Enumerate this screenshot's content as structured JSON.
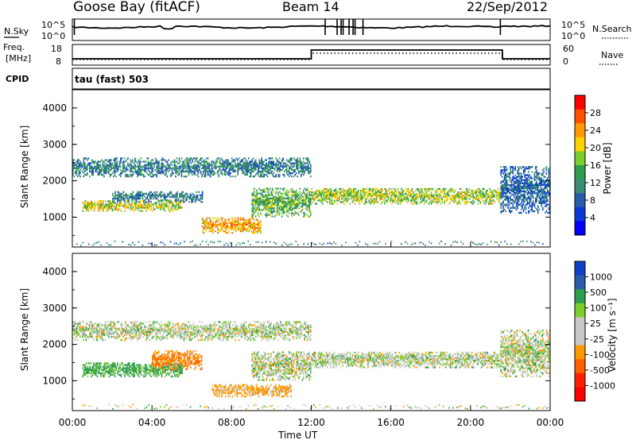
{
  "header": {
    "title": "Goose Bay (fitACF)",
    "beam": "Beam 14",
    "date": "22/Sep/2012"
  },
  "summary_panels": {
    "nsky_label": "N.Sky",
    "nsky_ticks": [
      "10^5",
      "10^0"
    ],
    "nsearch_label": "N.Search",
    "nsearch_ticks": [
      "10^5",
      "10^0"
    ],
    "freq_label": "Freq.",
    "freq_unit": "[MHz]",
    "freq_ticks": [
      "18",
      "8"
    ],
    "nave_label": "Nave",
    "nave_ticks": [
      "60",
      "0"
    ],
    "cpid_label": "CPID",
    "cpid_text": "tau (fast) 503"
  },
  "power_panel": {
    "ylabel": "Slant Range [km]",
    "yticks": [
      "4000",
      "3000",
      "2000",
      "1000"
    ],
    "colorbar_label": "Power [dB]",
    "colorbar_ticks": [
      "28",
      "24",
      "20",
      "16",
      "12",
      "8",
      "4"
    ],
    "colorbar_colors": [
      "#ff0000",
      "#ff5000",
      "#ff9a00",
      "#ffd200",
      "#7ccd2e",
      "#2f9d4e",
      "#3d8c7a",
      "#2a5cae",
      "#0a3ad6",
      "#0000ff"
    ]
  },
  "velocity_panel": {
    "ylabel": "Slant Range [km]",
    "yticks": [
      "4000",
      "3000",
      "2000",
      "1000"
    ],
    "colorbar_label": "Velocity [m s⁻¹]",
    "colorbar_ticks": [
      "1000",
      "500",
      "100",
      "25",
      "-25",
      "-100",
      "-500",
      "-1000"
    ],
    "colorbar_colors": [
      "#1040c8",
      "#2a5cae",
      "#2f9d4e",
      "#7ccd2e",
      "#c8c8c8",
      "#c8c8c8",
      "#ff9a00",
      "#ff6000",
      "#ff2000",
      "#ff0000"
    ]
  },
  "xaxis": {
    "label": "Time UT",
    "ticks": [
      "00:00",
      "04:00",
      "08:00",
      "12:00",
      "16:00",
      "20:00",
      "00:00"
    ]
  },
  "chart_data": [
    {
      "type": "heatmap",
      "name": "power",
      "xlabel": "Time UT",
      "ylabel": "Slant Range [km]",
      "zlabel": "Power [dB]",
      "xlim": [
        0,
        24
      ],
      "ylim": [
        180,
        4500
      ],
      "zlim": [
        0,
        30
      ],
      "echo_regions": [
        {
          "t": [
            0.0,
            12.0
          ],
          "range": [
            2100,
            2600
          ],
          "power": 10
        },
        {
          "t": [
            0.5,
            5.5
          ],
          "range": [
            1150,
            1450
          ],
          "power": 18
        },
        {
          "t": [
            2.0,
            6.5
          ],
          "range": [
            1400,
            1700
          ],
          "power": 10
        },
        {
          "t": [
            6.5,
            9.5
          ],
          "range": [
            550,
            1000
          ],
          "power": 22
        },
        {
          "t": [
            9.0,
            12.0
          ],
          "range": [
            1000,
            1800
          ],
          "power": 14
        },
        {
          "t": [
            12.0,
            21.5
          ],
          "range": [
            1350,
            1800
          ],
          "power": 17
        },
        {
          "t": [
            21.5,
            24.0
          ],
          "range": [
            1100,
            2400
          ],
          "power": 8
        }
      ]
    },
    {
      "type": "heatmap",
      "name": "velocity",
      "xlabel": "Time UT",
      "ylabel": "Slant Range [km]",
      "zlabel": "Velocity [m s^-1]",
      "xlim": [
        0,
        24
      ],
      "ylim": [
        180,
        4500
      ],
      "zlim": [
        -1000,
        1000
      ],
      "echo_regions": [
        {
          "t": [
            0.0,
            12.0
          ],
          "range": [
            2100,
            2600
          ],
          "velocity": 0
        },
        {
          "t": [
            0.5,
            5.5
          ],
          "range": [
            1100,
            1500
          ],
          "velocity": 100
        },
        {
          "t": [
            4.0,
            6.5
          ],
          "range": [
            1300,
            1800
          ],
          "velocity": -300
        },
        {
          "t": [
            7.0,
            11.0
          ],
          "range": [
            550,
            900
          ],
          "velocity": -100
        },
        {
          "t": [
            9.0,
            12.0
          ],
          "range": [
            1000,
            1800
          ],
          "velocity": 0
        },
        {
          "t": [
            12.0,
            21.5
          ],
          "range": [
            1350,
            1800
          ],
          "velocity": 0
        },
        {
          "t": [
            21.5,
            24.0
          ],
          "range": [
            1100,
            2400
          ],
          "velocity": 0
        }
      ]
    }
  ]
}
